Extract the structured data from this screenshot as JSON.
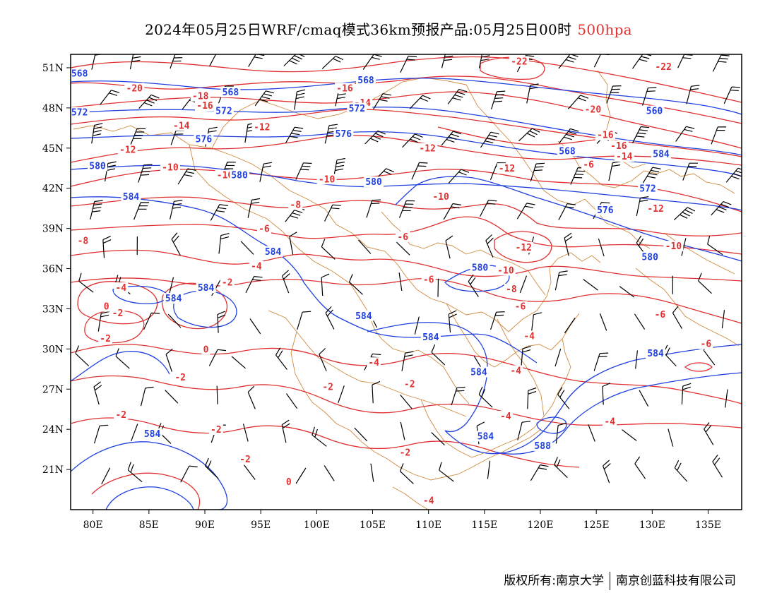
{
  "title": "2024年05月25日WRF/cmaq模式36km预报产品:05月25日00时",
  "level": "500hpa",
  "footer": {
    "left": "版权所有:南京大学",
    "right": "南京创蓝科技有限公司"
  },
  "colors": {
    "height": "#2040e0",
    "temperature": "#e03030",
    "border": "#d08a40",
    "wind": "#000000"
  },
  "map": {
    "lon_range": [
      78,
      138
    ],
    "lat_range": [
      18,
      52
    ],
    "lon_ticks": [
      80,
      85,
      90,
      95,
      100,
      105,
      110,
      115,
      120,
      125,
      130,
      135
    ],
    "lon_tick_labels": [
      "80E",
      "85E",
      "90E",
      "95E",
      "100E",
      "105E",
      "110E",
      "115E",
      "120E",
      "125E",
      "130E",
      "135E"
    ],
    "lat_ticks": [
      21,
      24,
      27,
      30,
      33,
      36,
      39,
      42,
      45,
      48,
      51
    ],
    "lat_tick_labels": [
      "21N",
      "24N",
      "27N",
      "30N",
      "33N",
      "36N",
      "39N",
      "42N",
      "45N",
      "48N",
      "51N"
    ]
  },
  "height_labels": [
    {
      "text": "568",
      "lon": 78.8,
      "lat": 50.5
    },
    {
      "text": "568",
      "lon": 92.3,
      "lat": 49.1
    },
    {
      "text": "568",
      "lon": 104.4,
      "lat": 50.0
    },
    {
      "text": "572",
      "lon": 78.8,
      "lat": 47.6
    },
    {
      "text": "572",
      "lon": 91.7,
      "lat": 47.7
    },
    {
      "text": "572",
      "lon": 103.6,
      "lat": 47.9
    },
    {
      "text": "576",
      "lon": 89.9,
      "lat": 45.6
    },
    {
      "text": "576",
      "lon": 102.4,
      "lat": 46.0
    },
    {
      "text": "580",
      "lon": 80.4,
      "lat": 43.6
    },
    {
      "text": "580",
      "lon": 93.1,
      "lat": 42.9
    },
    {
      "text": "580",
      "lon": 105.1,
      "lat": 42.4
    },
    {
      "text": "584",
      "lon": 83.4,
      "lat": 41.3
    },
    {
      "text": "584",
      "lon": 96.1,
      "lat": 37.2
    },
    {
      "text": "584",
      "lon": 90.1,
      "lat": 34.5
    },
    {
      "text": "584",
      "lon": 87.2,
      "lat": 33.7
    },
    {
      "text": "584",
      "lon": 104.2,
      "lat": 32.4
    },
    {
      "text": "584",
      "lon": 110.2,
      "lat": 30.8
    },
    {
      "text": "584",
      "lon": 114.5,
      "lat": 28.2
    },
    {
      "text": "584",
      "lon": 115.1,
      "lat": 23.4
    },
    {
      "text": "584",
      "lon": 85.3,
      "lat": 23.6
    },
    {
      "text": "584",
      "lon": 130.3,
      "lat": 29.6
    },
    {
      "text": "560",
      "lon": 130.2,
      "lat": 47.7
    },
    {
      "text": "568",
      "lon": 122.4,
      "lat": 44.7
    },
    {
      "text": "584",
      "lon": 130.8,
      "lat": 44.5
    },
    {
      "text": "572",
      "lon": 129.6,
      "lat": 41.9
    },
    {
      "text": "576",
      "lon": 125.8,
      "lat": 40.3
    },
    {
      "text": "580",
      "lon": 129.8,
      "lat": 36.8
    },
    {
      "text": "580",
      "lon": 114.6,
      "lat": 36.0
    },
    {
      "text": "588",
      "lon": 120.2,
      "lat": 22.7
    }
  ],
  "temp_labels": [
    {
      "text": "-20",
      "lon": 83.7,
      "lat": 49.4
    },
    {
      "text": "-18",
      "lon": 89.6,
      "lat": 48.8
    },
    {
      "text": "-16",
      "lon": 90.0,
      "lat": 48.1
    },
    {
      "text": "-16",
      "lon": 102.5,
      "lat": 49.4
    },
    {
      "text": "-14",
      "lon": 104.1,
      "lat": 48.3
    },
    {
      "text": "-14",
      "lon": 87.9,
      "lat": 46.6
    },
    {
      "text": "-12",
      "lon": 95.1,
      "lat": 46.5
    },
    {
      "text": "-12",
      "lon": 83.1,
      "lat": 44.8
    },
    {
      "text": "-12",
      "lon": 109.9,
      "lat": 44.9
    },
    {
      "text": "-10",
      "lon": 86.9,
      "lat": 43.5
    },
    {
      "text": "-10",
      "lon": 91.8,
      "lat": 42.9
    },
    {
      "text": "-10",
      "lon": 100.9,
      "lat": 42.6
    },
    {
      "text": "-10",
      "lon": 111.1,
      "lat": 41.3
    },
    {
      "text": "-8",
      "lon": 98.1,
      "lat": 40.7
    },
    {
      "text": "-8",
      "lon": 79.1,
      "lat": 38.0
    },
    {
      "text": "-6",
      "lon": 95.3,
      "lat": 38.9
    },
    {
      "text": "-6",
      "lon": 107.7,
      "lat": 38.3
    },
    {
      "text": "-4",
      "lon": 94.6,
      "lat": 36.1
    },
    {
      "text": "-4",
      "lon": 82.5,
      "lat": 34.5
    },
    {
      "text": "-2",
      "lon": 92.0,
      "lat": 34.9
    },
    {
      "text": "0",
      "lon": 81.2,
      "lat": 33.1
    },
    {
      "text": "-2",
      "lon": 82.2,
      "lat": 32.6
    },
    {
      "text": "-2",
      "lon": 81.1,
      "lat": 30.7
    },
    {
      "text": "0",
      "lon": 90.1,
      "lat": 29.9
    },
    {
      "text": "-2",
      "lon": 87.8,
      "lat": 27.8
    },
    {
      "text": "-2",
      "lon": 82.5,
      "lat": 25.0
    },
    {
      "text": "-2",
      "lon": 91.0,
      "lat": 23.9
    },
    {
      "text": "-2",
      "lon": 93.6,
      "lat": 21.7
    },
    {
      "text": "0",
      "lon": 97.5,
      "lat": 20.0
    },
    {
      "text": "-6",
      "lon": 110.0,
      "lat": 35.1
    },
    {
      "text": "-4",
      "lon": 105.1,
      "lat": 28.9
    },
    {
      "text": "-2",
      "lon": 101.0,
      "lat": 27.1
    },
    {
      "text": "-2",
      "lon": 108.3,
      "lat": 27.3
    },
    {
      "text": "-2",
      "lon": 107.9,
      "lat": 22.2
    },
    {
      "text": "-4",
      "lon": 117.8,
      "lat": 28.3
    },
    {
      "text": "-4",
      "lon": 116.9,
      "lat": 24.9
    },
    {
      "text": "-4",
      "lon": 110.0,
      "lat": 18.6
    },
    {
      "text": "-4",
      "lon": 126.2,
      "lat": 24.5
    },
    {
      "text": "-6",
      "lon": 124.3,
      "lat": 43.7
    },
    {
      "text": "-12",
      "lon": 117.0,
      "lat": 43.4
    },
    {
      "text": "-14",
      "lon": 127.5,
      "lat": 44.3
    },
    {
      "text": "-16",
      "lon": 125.8,
      "lat": 45.9
    },
    {
      "text": "-16",
      "lon": 127.0,
      "lat": 45.1
    },
    {
      "text": "-20",
      "lon": 124.7,
      "lat": 47.8
    },
    {
      "text": "-22",
      "lon": 118.1,
      "lat": 51.4
    },
    {
      "text": "-22",
      "lon": 131.0,
      "lat": 51.0
    },
    {
      "text": "-12",
      "lon": 130.3,
      "lat": 40.4
    },
    {
      "text": "-12",
      "lon": 118.5,
      "lat": 37.5
    },
    {
      "text": "-10",
      "lon": 131.9,
      "lat": 37.6
    },
    {
      "text": "-10",
      "lon": 116.9,
      "lat": 35.8
    },
    {
      "text": "-8",
      "lon": 117.4,
      "lat": 34.4
    },
    {
      "text": "-6",
      "lon": 118.2,
      "lat": 33.1
    },
    {
      "text": "-6",
      "lon": 130.7,
      "lat": 32.5
    },
    {
      "text": "-4",
      "lon": 119.0,
      "lat": 30.9
    },
    {
      "text": "-6",
      "lon": 134.8,
      "lat": 30.3
    }
  ]
}
